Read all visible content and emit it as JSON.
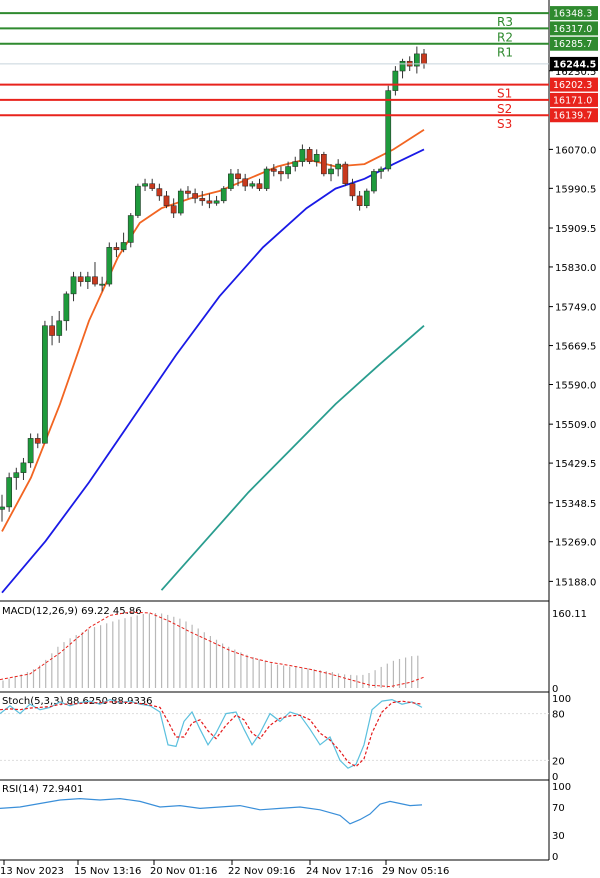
{
  "chart_data": [
    {
      "type": "candlestick",
      "ylim": [
        15150,
        16375
      ],
      "y_ticks": [
        "16230.5",
        "16070.0",
        "15990.5",
        "15909.5",
        "15830.0",
        "15749.0",
        "15669.5",
        "15590.0",
        "15509.0",
        "15429.5",
        "15348.5",
        "15269.0",
        "15188.0"
      ],
      "x_ticks": [
        "13 Nov 2023",
        "15 Nov 13:16",
        "20 Nov 01:16",
        "22 Nov 09:16",
        "24 Nov 17:16",
        "29 Nov 05:16"
      ],
      "current_price": "16244.5",
      "levels": [
        {
          "name": "R3",
          "value": "16348.3",
          "kind": "resistance"
        },
        {
          "name": "R2",
          "value": "16317.0",
          "kind": "resistance"
        },
        {
          "name": "R1",
          "value": "16285.7",
          "kind": "resistance"
        },
        {
          "name": "S1",
          "value": "16202.3",
          "kind": "support"
        },
        {
          "name": "S2",
          "value": "16171.0",
          "kind": "support"
        },
        {
          "name": "S3",
          "value": "16139.7",
          "kind": "support"
        }
      ],
      "candles": [
        [
          15335,
          15365,
          15310,
          15340
        ],
        [
          15340,
          15410,
          15330,
          15400
        ],
        [
          15400,
          15420,
          15375,
          15410
        ],
        [
          15410,
          15440,
          15395,
          15430
        ],
        [
          15430,
          15490,
          15420,
          15480
        ],
        [
          15480,
          15490,
          15460,
          15470
        ],
        [
          15470,
          15720,
          15470,
          15710
        ],
        [
          15710,
          15730,
          15670,
          15690
        ],
        [
          15690,
          15740,
          15675,
          15720
        ],
        [
          15720,
          15780,
          15700,
          15775
        ],
        [
          15775,
          15820,
          15760,
          15810
        ],
        [
          15810,
          15820,
          15790,
          15800
        ],
        [
          15800,
          15820,
          15785,
          15810
        ],
        [
          15810,
          15840,
          15790,
          15795
        ],
        [
          15795,
          15810,
          15780,
          15795
        ],
        [
          15795,
          15880,
          15790,
          15870
        ],
        [
          15870,
          15880,
          15850,
          15865
        ],
        [
          15865,
          15900,
          15860,
          15880
        ],
        [
          15880,
          15940,
          15870,
          15935
        ],
        [
          15935,
          16000,
          15930,
          15995
        ],
        [
          15995,
          16010,
          15985,
          16000
        ],
        [
          16000,
          16010,
          15985,
          15990
        ],
        [
          15990,
          16000,
          15965,
          15975
        ],
        [
          15975,
          15985,
          15950,
          15955
        ],
        [
          15955,
          15970,
          15930,
          15940
        ],
        [
          15940,
          15990,
          15935,
          15985
        ],
        [
          15985,
          15995,
          15970,
          15980
        ],
        [
          15980,
          15990,
          15960,
          15970
        ],
        [
          15970,
          15985,
          15955,
          15965
        ],
        [
          15965,
          15980,
          15950,
          15960
        ],
        [
          15960,
          15975,
          15955,
          15965
        ],
        [
          15965,
          15995,
          15960,
          15990
        ],
        [
          15990,
          16030,
          15985,
          16020
        ],
        [
          16020,
          16030,
          15995,
          16010
        ],
        [
          16010,
          16020,
          15985,
          15995
        ],
        [
          15995,
          16005,
          15990,
          16000
        ],
        [
          16000,
          16010,
          15985,
          15990
        ],
        [
          15990,
          16035,
          15985,
          16030
        ],
        [
          16030,
          16040,
          16015,
          16025
        ],
        [
          16025,
          16035,
          16005,
          16020
        ],
        [
          16020,
          16045,
          16010,
          16035
        ],
        [
          16035,
          16055,
          16025,
          16045
        ],
        [
          16045,
          16080,
          16035,
          16070
        ],
        [
          16070,
          16075,
          16040,
          16045
        ],
        [
          16045,
          16070,
          16035,
          16060
        ],
        [
          16060,
          16065,
          16015,
          16020
        ],
        [
          16020,
          16040,
          16005,
          16030
        ],
        [
          16030,
          16050,
          16015,
          16040
        ],
        [
          16040,
          16045,
          15995,
          16000
        ],
        [
          16000,
          16010,
          15965,
          15975
        ],
        [
          15975,
          15985,
          15945,
          15955
        ],
        [
          15955,
          15990,
          15950,
          15985
        ],
        [
          15985,
          16030,
          15980,
          16025
        ],
        [
          16025,
          16035,
          16010,
          16030
        ],
        [
          16030,
          16200,
          16025,
          16190
        ],
        [
          16190,
          16240,
          16180,
          16230
        ],
        [
          16230,
          16255,
          16215,
          16250
        ],
        [
          16250,
          16260,
          16230,
          16240
        ],
        [
          16240,
          16280,
          16225,
          16265
        ],
        [
          16265,
          16275,
          16235,
          16245
        ]
      ],
      "moving_averages": [
        {
          "color": "#f26522",
          "points": [
            [
              0,
              15290
            ],
            [
              20,
              15400
            ],
            [
              40,
              15550
            ],
            [
              60,
              15720
            ],
            [
              80,
              15850
            ],
            [
              95,
              15920
            ],
            [
              110,
              15950
            ],
            [
              130,
              15970
            ],
            [
              150,
              15985
            ],
            [
              170,
              16010
            ],
            [
              190,
              16035
            ],
            [
              210,
              16050
            ],
            [
              230,
              16035
            ],
            [
              250,
              16040
            ],
            [
              270,
              16070
            ],
            [
              291,
              16110
            ]
          ]
        },
        {
          "color": "#1a1ae6",
          "points": [
            [
              0,
              15165
            ],
            [
              30,
              15270
            ],
            [
              60,
              15390
            ],
            [
              90,
              15520
            ],
            [
              120,
              15650
            ],
            [
              150,
              15770
            ],
            [
              180,
              15870
            ],
            [
              210,
              15950
            ],
            [
              230,
              15990
            ],
            [
              250,
              16010
            ],
            [
              270,
              16040
            ],
            [
              291,
              16070
            ]
          ]
        },
        {
          "color": "#2a9d8f",
          "points": [
            [
              110,
              15170
            ],
            [
              140,
              15270
            ],
            [
              170,
              15370
            ],
            [
              200,
              15460
            ],
            [
              230,
              15550
            ],
            [
              260,
              15630
            ],
            [
              291,
              15710
            ]
          ]
        }
      ]
    },
    {
      "type": "bar",
      "title": "MACD(12,26,9) 69.22 45.86",
      "y_ticks": [
        "160.11",
        "0"
      ],
      "ylim": [
        0,
        175
      ],
      "histogram": [
        16,
        20,
        25,
        29,
        34,
        40,
        48,
        60,
        74,
        88,
        98,
        106,
        113,
        119,
        125,
        130,
        134,
        138,
        142,
        146,
        149,
        152,
        155,
        158,
        159,
        160,
        159,
        156,
        152,
        148,
        142,
        135,
        127,
        119,
        111,
        103,
        95,
        88,
        82,
        76,
        71,
        66,
        61,
        57,
        53,
        50,
        48,
        46,
        45,
        44,
        42,
        40,
        38,
        36,
        34,
        31,
        29,
        28,
        27,
        28,
        32,
        38,
        45,
        52,
        58,
        62,
        65,
        68,
        69
      ],
      "signal": [
        [
          0,
          18
        ],
        [
          30,
          30
        ],
        [
          60,
          75
        ],
        [
          90,
          130
        ],
        [
          110,
          155
        ],
        [
          130,
          162
        ],
        [
          150,
          160
        ],
        [
          170,
          142
        ],
        [
          190,
          120
        ],
        [
          210,
          100
        ],
        [
          230,
          80
        ],
        [
          250,
          65
        ],
        [
          270,
          55
        ],
        [
          290,
          48
        ],
        [
          310,
          40
        ],
        [
          330,
          30
        ],
        [
          350,
          18
        ],
        [
          370,
          6
        ],
        [
          390,
          3
        ],
        [
          410,
          12
        ],
        [
          425,
          24
        ]
      ]
    },
    {
      "type": "line",
      "title": "Stoch(5,3,3) 88.6250 88.9336",
      "y_ticks": [
        "100",
        "80",
        "20",
        "0"
      ],
      "ylim": [
        0,
        100
      ],
      "series": [
        {
          "color": "#5bc0de",
          "points": [
            [
              0,
              80
            ],
            [
              10,
              90
            ],
            [
              20,
              80
            ],
            [
              30,
              92
            ],
            [
              40,
              85
            ],
            [
              50,
              88
            ],
            [
              60,
              95
            ],
            [
              70,
              90
            ],
            [
              80,
              94
            ],
            [
              90,
              96
            ],
            [
              100,
              92
            ],
            [
              110,
              98
            ],
            [
              120,
              94
            ],
            [
              130,
              96
            ],
            [
              140,
              92
            ],
            [
              150,
              90
            ],
            [
              160,
              82
            ],
            [
              168,
              40
            ],
            [
              176,
              38
            ],
            [
              184,
              70
            ],
            [
              192,
              82
            ],
            [
              200,
              60
            ],
            [
              208,
              40
            ],
            [
              216,
              55
            ],
            [
              226,
              80
            ],
            [
              236,
              82
            ],
            [
              244,
              60
            ],
            [
              252,
              40
            ],
            [
              260,
              55
            ],
            [
              270,
              80
            ],
            [
              280,
              70
            ],
            [
              290,
              82
            ],
            [
              300,
              78
            ],
            [
              310,
              60
            ],
            [
              320,
              40
            ],
            [
              330,
              50
            ],
            [
              340,
              20
            ],
            [
              348,
              10
            ],
            [
              356,
              15
            ],
            [
              364,
              40
            ],
            [
              372,
              85
            ],
            [
              382,
              96
            ],
            [
              392,
              98
            ],
            [
              402,
              92
            ],
            [
              412,
              95
            ],
            [
              422,
              88
            ]
          ]
        },
        {
          "color": "#e41a1c",
          "points": [
            [
              0,
              85
            ],
            [
              10,
              86
            ],
            [
              20,
              85
            ],
            [
              30,
              87
            ],
            [
              40,
              88
            ],
            [
              50,
              89
            ],
            [
              60,
              92
            ],
            [
              70,
              92
            ],
            [
              80,
              93
            ],
            [
              90,
              94
            ],
            [
              100,
              94
            ],
            [
              110,
              95
            ],
            [
              120,
              95
            ],
            [
              130,
              94
            ],
            [
              140,
              93
            ],
            [
              150,
              91
            ],
            [
              160,
              88
            ],
            [
              168,
              70
            ],
            [
              176,
              50
            ],
            [
              184,
              50
            ],
            [
              192,
              68
            ],
            [
              200,
              72
            ],
            [
              208,
              58
            ],
            [
              216,
              48
            ],
            [
              226,
              65
            ],
            [
              236,
              78
            ],
            [
              244,
              72
            ],
            [
              252,
              55
            ],
            [
              260,
              48
            ],
            [
              270,
              65
            ],
            [
              280,
              74
            ],
            [
              290,
              77
            ],
            [
              300,
              78
            ],
            [
              310,
              72
            ],
            [
              320,
              55
            ],
            [
              330,
              46
            ],
            [
              340,
              32
            ],
            [
              348,
              18
            ],
            [
              356,
              12
            ],
            [
              364,
              22
            ],
            [
              372,
              55
            ],
            [
              382,
              82
            ],
            [
              392,
              94
            ],
            [
              402,
              96
            ],
            [
              412,
              94
            ],
            [
              422,
              92
            ]
          ]
        }
      ]
    },
    {
      "type": "line",
      "title": "RSI(14) 72.9401",
      "y_ticks": [
        "100",
        "70",
        "30",
        "0"
      ],
      "ylim": [
        0,
        100
      ],
      "series": [
        {
          "color": "#3a8fd9",
          "points": [
            [
              0,
              68
            ],
            [
              20,
              70
            ],
            [
              40,
              75
            ],
            [
              60,
              80
            ],
            [
              80,
              82
            ],
            [
              100,
              80
            ],
            [
              120,
              82
            ],
            [
              140,
              78
            ],
            [
              160,
              70
            ],
            [
              180,
              72
            ],
            [
              200,
              68
            ],
            [
              220,
              70
            ],
            [
              240,
              72
            ],
            [
              260,
              66
            ],
            [
              280,
              68
            ],
            [
              300,
              70
            ],
            [
              320,
              66
            ],
            [
              340,
              58
            ],
            [
              350,
              46
            ],
            [
              360,
              52
            ],
            [
              370,
              60
            ],
            [
              380,
              74
            ],
            [
              390,
              78
            ],
            [
              400,
              75
            ],
            [
              410,
              72
            ],
            [
              422,
              73
            ]
          ]
        }
      ]
    }
  ]
}
